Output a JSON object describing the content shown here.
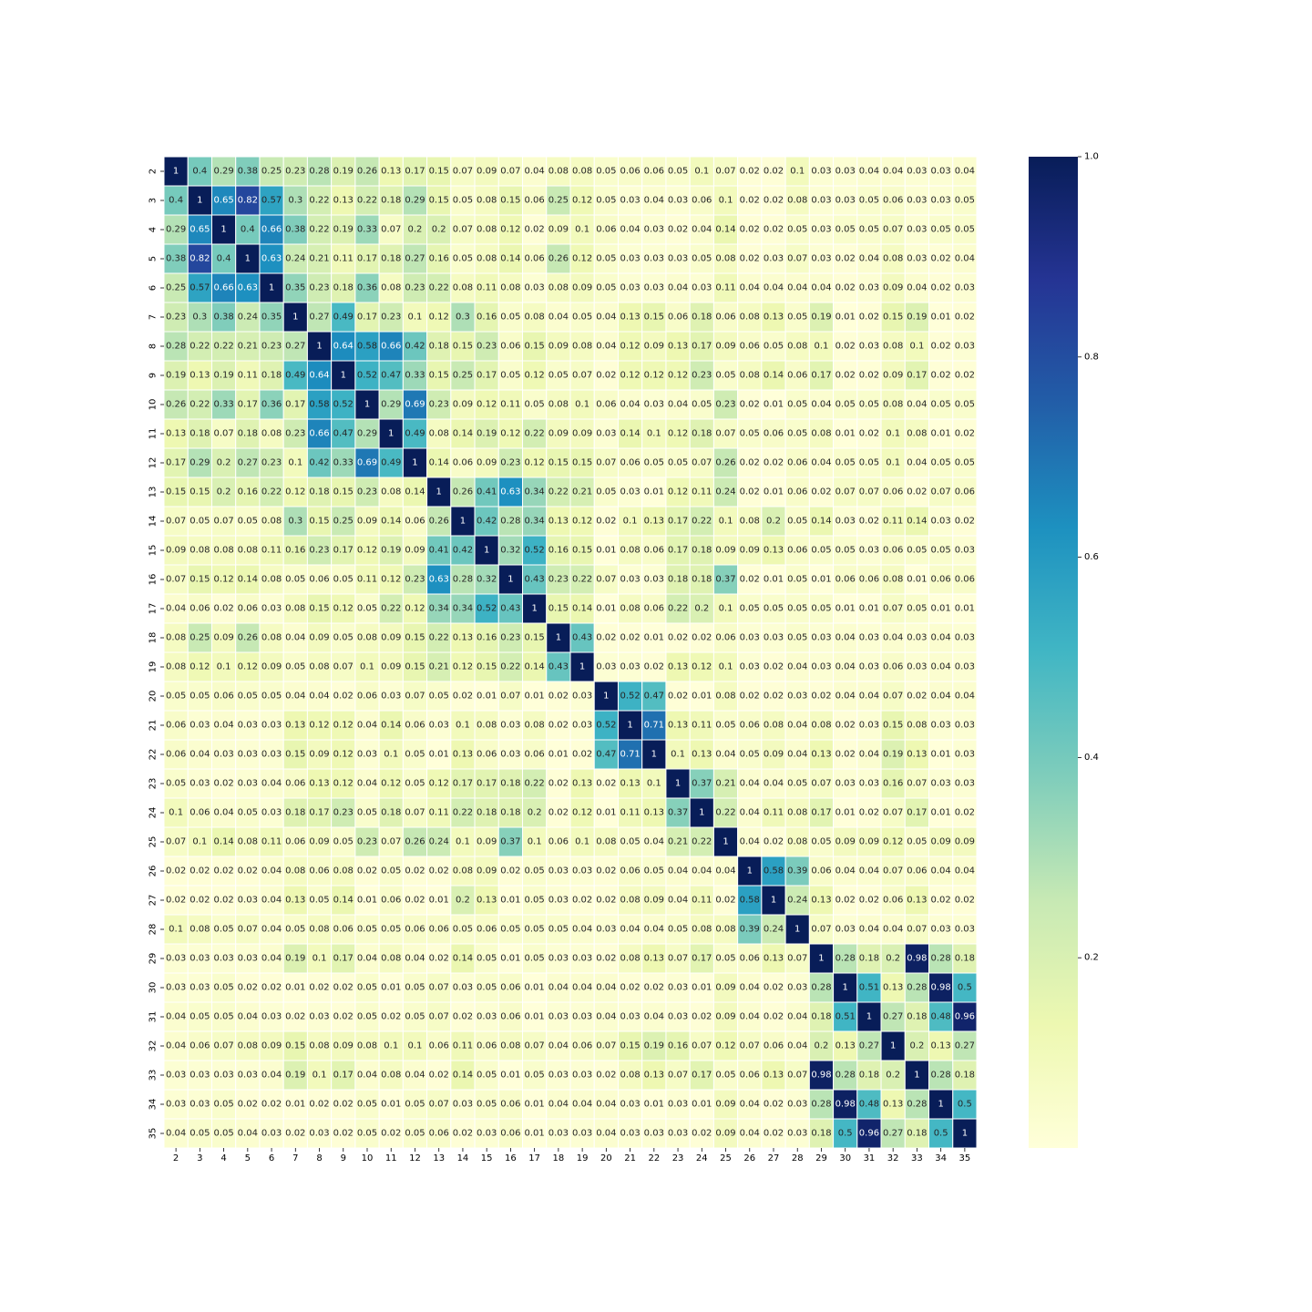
{
  "chart_data": {
    "type": "heatmap",
    "labels": [
      "2",
      "3",
      "4",
      "5",
      "6",
      "7",
      "8",
      "9",
      "10",
      "11",
      "12",
      "13",
      "14",
      "15",
      "16",
      "17",
      "18",
      "19",
      "20",
      "21",
      "22",
      "23",
      "24",
      "25",
      "26",
      "27",
      "28",
      "29",
      "30",
      "31",
      "32",
      "33",
      "34",
      "35"
    ],
    "values": [
      [
        1,
        0.4,
        0.29,
        0.38,
        0.25,
        0.23,
        0.28,
        0.19,
        0.26,
        0.13,
        0.17,
        0.15,
        0.07,
        0.09,
        0.07,
        0.04,
        0.08,
        0.08,
        0.05,
        0.06,
        0.06,
        0.05,
        0.1,
        0.07,
        0.02,
        0.02,
        0.1,
        0.03,
        0.03,
        0.04,
        0.04,
        0.03,
        0.03,
        0.04
      ],
      [
        0.4,
        1,
        0.65,
        0.82,
        0.57,
        0.3,
        0.22,
        0.13,
        0.22,
        0.18,
        0.29,
        0.15,
        0.05,
        0.08,
        0.15,
        0.06,
        0.25,
        0.12,
        0.05,
        0.03,
        0.04,
        0.03,
        0.06,
        0.1,
        0.02,
        0.02,
        0.08,
        0.03,
        0.03,
        0.05,
        0.06,
        0.03,
        0.03,
        0.05
      ],
      [
        0.29,
        0.65,
        1,
        0.4,
        0.66,
        0.38,
        0.22,
        0.19,
        0.33,
        0.07,
        0.2,
        0.2,
        0.07,
        0.08,
        0.12,
        0.02,
        0.09,
        0.1,
        0.06,
        0.04,
        0.03,
        0.02,
        0.04,
        0.14,
        0.02,
        0.02,
        0.05,
        0.03,
        0.05,
        0.05,
        0.07,
        0.03,
        0.05,
        0.05
      ],
      [
        0.38,
        0.82,
        0.4,
        1,
        0.63,
        0.24,
        0.21,
        0.11,
        0.17,
        0.18,
        0.27,
        0.16,
        0.05,
        0.08,
        0.14,
        0.06,
        0.26,
        0.12,
        0.05,
        0.03,
        0.03,
        0.03,
        0.05,
        0.08,
        0.02,
        0.03,
        0.07,
        0.03,
        0.02,
        0.04,
        0.08,
        0.03,
        0.02,
        0.04
      ],
      [
        0.25,
        0.57,
        0.66,
        0.63,
        1,
        0.35,
        0.23,
        0.18,
        0.36,
        0.08,
        0.23,
        0.22,
        0.08,
        0.11,
        0.08,
        0.03,
        0.08,
        0.09,
        0.05,
        0.03,
        0.03,
        0.04,
        0.03,
        0.11,
        0.04,
        0.04,
        0.04,
        0.04,
        0.02,
        0.03,
        0.09,
        0.04,
        0.02,
        0.03
      ],
      [
        0.23,
        0.3,
        0.38,
        0.24,
        0.35,
        1,
        0.27,
        0.49,
        0.17,
        0.23,
        0.1,
        0.12,
        0.3,
        0.16,
        0.05,
        0.08,
        0.04,
        0.05,
        0.04,
        0.13,
        0.15,
        0.06,
        0.18,
        0.06,
        0.08,
        0.13,
        0.05,
        0.19,
        0.01,
        0.02,
        0.15,
        0.19,
        0.01,
        0.02
      ],
      [
        0.28,
        0.22,
        0.22,
        0.21,
        0.23,
        0.27,
        1,
        0.64,
        0.58,
        0.66,
        0.42,
        0.18,
        0.15,
        0.23,
        0.06,
        0.15,
        0.09,
        0.08,
        0.04,
        0.12,
        0.09,
        0.13,
        0.17,
        0.09,
        0.06,
        0.05,
        0.08,
        0.1,
        0.02,
        0.03,
        0.08,
        0.1,
        0.02,
        0.03
      ],
      [
        0.19,
        0.13,
        0.19,
        0.11,
        0.18,
        0.49,
        0.64,
        1,
        0.52,
        0.47,
        0.33,
        0.15,
        0.25,
        0.17,
        0.05,
        0.12,
        0.05,
        0.07,
        0.02,
        0.12,
        0.12,
        0.12,
        0.23,
        0.05,
        0.08,
        0.14,
        0.06,
        0.17,
        0.02,
        0.02,
        0.09,
        0.17,
        0.02,
        0.02
      ],
      [
        0.26,
        0.22,
        0.33,
        0.17,
        0.36,
        0.17,
        0.58,
        0.52,
        1,
        0.29,
        0.69,
        0.23,
        0.09,
        0.12,
        0.11,
        0.05,
        0.08,
        0.1,
        0.06,
        0.04,
        0.03,
        0.04,
        0.05,
        0.23,
        0.02,
        0.01,
        0.05,
        0.04,
        0.05,
        0.05,
        0.08,
        0.04,
        0.05,
        0.05
      ],
      [
        0.13,
        0.18,
        0.07,
        0.18,
        0.08,
        0.23,
        0.66,
        0.47,
        0.29,
        1,
        0.49,
        0.08,
        0.14,
        0.19,
        0.12,
        0.22,
        0.09,
        0.09,
        0.03,
        0.14,
        0.1,
        0.12,
        0.18,
        0.07,
        0.05,
        0.06,
        0.05,
        0.08,
        0.01,
        0.02,
        0.1,
        0.08,
        0.01,
        0.02
      ],
      [
        0.17,
        0.29,
        0.2,
        0.27,
        0.23,
        0.1,
        0.42,
        0.33,
        0.69,
        0.49,
        1,
        0.14,
        0.06,
        0.09,
        0.23,
        0.12,
        0.15,
        0.15,
        0.07,
        0.06,
        0.05,
        0.05,
        0.07,
        0.26,
        0.02,
        0.02,
        0.06,
        0.04,
        0.05,
        0.05,
        0.1,
        0.04,
        0.05,
        0.05
      ],
      [
        0.15,
        0.15,
        0.2,
        0.16,
        0.22,
        0.12,
        0.18,
        0.15,
        0.23,
        0.08,
        0.14,
        1,
        0.26,
        0.41,
        0.63,
        0.34,
        0.22,
        0.21,
        0.05,
        0.03,
        0.01,
        0.12,
        0.11,
        0.24,
        0.02,
        0.01,
        0.06,
        0.02,
        0.07,
        0.07,
        0.06,
        0.02,
        0.07,
        0.06
      ],
      [
        0.07,
        0.05,
        0.07,
        0.05,
        0.08,
        0.3,
        0.15,
        0.25,
        0.09,
        0.14,
        0.06,
        0.26,
        1,
        0.42,
        0.28,
        0.34,
        0.13,
        0.12,
        0.02,
        0.1,
        0.13,
        0.17,
        0.22,
        0.1,
        0.08,
        0.2,
        0.05,
        0.14,
        0.03,
        0.02,
        0.11,
        0.14,
        0.03,
        0.02
      ],
      [
        0.09,
        0.08,
        0.08,
        0.08,
        0.11,
        0.16,
        0.23,
        0.17,
        0.12,
        0.19,
        0.09,
        0.41,
        0.42,
        1,
        0.32,
        0.52,
        0.16,
        0.15,
        0.01,
        0.08,
        0.06,
        0.17,
        0.18,
        0.09,
        0.09,
        0.13,
        0.06,
        0.05,
        0.05,
        0.03,
        0.06,
        0.05,
        0.05,
        0.03
      ],
      [
        0.07,
        0.15,
        0.12,
        0.14,
        0.08,
        0.05,
        0.06,
        0.05,
        0.11,
        0.12,
        0.23,
        0.63,
        0.28,
        0.32,
        1,
        0.43,
        0.23,
        0.22,
        0.07,
        0.03,
        0.03,
        0.18,
        0.18,
        0.37,
        0.02,
        0.01,
        0.05,
        0.01,
        0.06,
        0.06,
        0.08,
        0.01,
        0.06,
        0.06
      ],
      [
        0.04,
        0.06,
        0.02,
        0.06,
        0.03,
        0.08,
        0.15,
        0.12,
        0.05,
        0.22,
        0.12,
        0.34,
        0.34,
        0.52,
        0.43,
        1,
        0.15,
        0.14,
        0.01,
        0.08,
        0.06,
        0.22,
        0.2,
        0.1,
        0.05,
        0.05,
        0.05,
        0.05,
        0.01,
        0.01,
        0.07,
        0.05,
        0.01,
        0.01
      ],
      [
        0.08,
        0.25,
        0.09,
        0.26,
        0.08,
        0.04,
        0.09,
        0.05,
        0.08,
        0.09,
        0.15,
        0.22,
        0.13,
        0.16,
        0.23,
        0.15,
        1,
        0.43,
        0.02,
        0.02,
        0.01,
        0.02,
        0.02,
        0.06,
        0.03,
        0.03,
        0.05,
        0.03,
        0.04,
        0.03,
        0.04,
        0.03,
        0.04,
        0.03
      ],
      [
        0.08,
        0.12,
        0.1,
        0.12,
        0.09,
        0.05,
        0.08,
        0.07,
        0.1,
        0.09,
        0.15,
        0.21,
        0.12,
        0.15,
        0.22,
        0.14,
        0.43,
        1,
        0.03,
        0.03,
        0.02,
        0.13,
        0.12,
        0.1,
        0.03,
        0.02,
        0.04,
        0.03,
        0.04,
        0.03,
        0.06,
        0.03,
        0.04,
        0.03
      ],
      [
        0.05,
        0.05,
        0.06,
        0.05,
        0.05,
        0.04,
        0.04,
        0.02,
        0.06,
        0.03,
        0.07,
        0.05,
        0.02,
        0.01,
        0.07,
        0.01,
        0.02,
        0.03,
        1,
        0.52,
        0.47,
        0.02,
        0.01,
        0.08,
        0.02,
        0.02,
        0.03,
        0.02,
        0.04,
        0.04,
        0.07,
        0.02,
        0.04,
        0.04
      ],
      [
        0.06,
        0.03,
        0.04,
        0.03,
        0.03,
        0.13,
        0.12,
        0.12,
        0.04,
        0.14,
        0.06,
        0.03,
        0.1,
        0.08,
        0.03,
        0.08,
        0.02,
        0.03,
        0.52,
        1,
        0.71,
        0.13,
        0.11,
        0.05,
        0.06,
        0.08,
        0.04,
        0.08,
        0.02,
        0.03,
        0.15,
        0.08,
        0.03,
        0.03
      ],
      [
        0.06,
        0.04,
        0.03,
        0.03,
        0.03,
        0.15,
        0.09,
        0.12,
        0.03,
        0.1,
        0.05,
        0.01,
        0.13,
        0.06,
        0.03,
        0.06,
        0.01,
        0.02,
        0.47,
        0.71,
        1,
        0.1,
        0.13,
        0.04,
        0.05,
        0.09,
        0.04,
        0.13,
        0.02,
        0.04,
        0.19,
        0.13,
        0.01,
        0.03
      ],
      [
        0.05,
        0.03,
        0.02,
        0.03,
        0.04,
        0.06,
        0.13,
        0.12,
        0.04,
        0.12,
        0.05,
        0.12,
        0.17,
        0.17,
        0.18,
        0.22,
        0.02,
        0.13,
        0.02,
        0.13,
        0.1,
        1,
        0.37,
        0.21,
        0.04,
        0.04,
        0.05,
        0.07,
        0.03,
        0.03,
        0.16,
        0.07,
        0.03,
        0.03
      ],
      [
        0.1,
        0.06,
        0.04,
        0.05,
        0.03,
        0.18,
        0.17,
        0.23,
        0.05,
        0.18,
        0.07,
        0.11,
        0.22,
        0.18,
        0.18,
        0.2,
        0.02,
        0.12,
        0.01,
        0.11,
        0.13,
        0.37,
        1,
        0.22,
        0.04,
        0.11,
        0.08,
        0.17,
        0.01,
        0.02,
        0.07,
        0.17,
        0.01,
        0.02
      ],
      [
        0.07,
        0.1,
        0.14,
        0.08,
        0.11,
        0.06,
        0.09,
        0.05,
        0.23,
        0.07,
        0.26,
        0.24,
        0.1,
        0.09,
        0.37,
        0.1,
        0.06,
        0.1,
        0.08,
        0.05,
        0.04,
        0.21,
        0.22,
        1,
        0.04,
        0.02,
        0.08,
        0.05,
        0.09,
        0.09,
        0.12,
        0.05,
        0.09,
        0.09
      ],
      [
        0.02,
        0.02,
        0.02,
        0.02,
        0.04,
        0.08,
        0.06,
        0.08,
        0.02,
        0.05,
        0.02,
        0.02,
        0.08,
        0.09,
        0.02,
        0.05,
        0.03,
        0.03,
        0.02,
        0.06,
        0.05,
        0.04,
        0.04,
        0.04,
        1,
        0.58,
        0.39,
        0.06,
        0.04,
        0.04,
        0.07,
        0.06,
        0.04,
        0.04
      ],
      [
        0.02,
        0.02,
        0.02,
        0.03,
        0.04,
        0.13,
        0.05,
        0.14,
        0.01,
        0.06,
        0.02,
        0.01,
        0.2,
        0.13,
        0.01,
        0.05,
        0.03,
        0.02,
        0.02,
        0.08,
        0.09,
        0.04,
        0.11,
        0.02,
        0.58,
        1,
        0.24,
        0.13,
        0.02,
        0.02,
        0.06,
        0.13,
        0.02,
        0.02
      ],
      [
        0.1,
        0.08,
        0.05,
        0.07,
        0.04,
        0.05,
        0.08,
        0.06,
        0.05,
        0.05,
        0.06,
        0.06,
        0.05,
        0.06,
        0.05,
        0.05,
        0.05,
        0.04,
        0.03,
        0.04,
        0.04,
        0.05,
        0.08,
        0.08,
        0.39,
        0.24,
        1,
        0.07,
        0.03,
        0.04,
        0.04,
        0.07,
        0.03,
        0.03
      ],
      [
        0.03,
        0.03,
        0.03,
        0.03,
        0.04,
        0.19,
        0.1,
        0.17,
        0.04,
        0.08,
        0.04,
        0.02,
        0.14,
        0.05,
        0.01,
        0.05,
        0.03,
        0.03,
        0.02,
        0.08,
        0.13,
        0.07,
        0.17,
        0.05,
        0.06,
        0.13,
        0.07,
        1,
        0.28,
        0.18,
        0.2,
        0.98,
        0.28,
        0.18
      ],
      [
        0.03,
        0.03,
        0.05,
        0.02,
        0.02,
        0.01,
        0.02,
        0.02,
        0.05,
        0.01,
        0.05,
        0.07,
        0.03,
        0.05,
        0.06,
        0.01,
        0.04,
        0.04,
        0.04,
        0.02,
        0.02,
        0.03,
        0.01,
        0.09,
        0.04,
        0.02,
        0.03,
        0.28,
        1,
        0.51,
        0.13,
        0.28,
        0.98,
        0.5
      ],
      [
        0.04,
        0.05,
        0.05,
        0.04,
        0.03,
        0.02,
        0.03,
        0.02,
        0.05,
        0.02,
        0.05,
        0.07,
        0.02,
        0.03,
        0.06,
        0.01,
        0.03,
        0.03,
        0.04,
        0.03,
        0.04,
        0.03,
        0.02,
        0.09,
        0.04,
        0.02,
        0.04,
        0.18,
        0.51,
        1,
        0.27,
        0.18,
        0.48,
        0.96
      ],
      [
        0.04,
        0.06,
        0.07,
        0.08,
        0.09,
        0.15,
        0.08,
        0.09,
        0.08,
        0.1,
        0.1,
        0.06,
        0.11,
        0.06,
        0.08,
        0.07,
        0.04,
        0.06,
        0.07,
        0.15,
        0.19,
        0.16,
        0.07,
        0.12,
        0.07,
        0.06,
        0.04,
        0.2,
        0.13,
        0.27,
        1,
        0.2,
        0.13,
        0.27
      ],
      [
        0.03,
        0.03,
        0.03,
        0.03,
        0.04,
        0.19,
        0.1,
        0.17,
        0.04,
        0.08,
        0.04,
        0.02,
        0.14,
        0.05,
        0.01,
        0.05,
        0.03,
        0.03,
        0.02,
        0.08,
        0.13,
        0.07,
        0.17,
        0.05,
        0.06,
        0.13,
        0.07,
        0.98,
        0.28,
        0.18,
        0.2,
        1,
        0.28,
        0.18
      ],
      [
        0.03,
        0.03,
        0.05,
        0.02,
        0.02,
        0.01,
        0.02,
        0.02,
        0.05,
        0.01,
        0.05,
        0.07,
        0.03,
        0.05,
        0.06,
        0.01,
        0.04,
        0.04,
        0.04,
        0.03,
        0.01,
        0.03,
        0.01,
        0.09,
        0.04,
        0.02,
        0.03,
        0.28,
        0.98,
        0.48,
        0.13,
        0.28,
        1,
        0.5
      ],
      [
        0.04,
        0.05,
        0.05,
        0.04,
        0.03,
        0.02,
        0.03,
        0.02,
        0.05,
        0.02,
        0.05,
        0.06,
        0.02,
        0.03,
        0.06,
        0.01,
        0.03,
        0.03,
        0.04,
        0.03,
        0.03,
        0.03,
        0.02,
        0.09,
        0.04,
        0.02,
        0.03,
        0.18,
        0.5,
        0.96,
        0.27,
        0.18,
        0.5,
        1
      ]
    ],
    "colormap": "YlGnBu",
    "colormap_stops": [
      "#ffffd9",
      "#edf8b1",
      "#c7e9b4",
      "#7fcdbb",
      "#41b6c4",
      "#1d91c0",
      "#225ea8",
      "#253494",
      "#081d58"
    ],
    "annotated": true,
    "colorbar": {
      "ticks": [
        0.2,
        0.4,
        0.6,
        0.8,
        1.0
      ],
      "tick_labels": [
        "0.2",
        "0.4",
        "0.6",
        "0.8",
        "1.0"
      ],
      "range": [
        0.01,
        1.0
      ]
    }
  }
}
